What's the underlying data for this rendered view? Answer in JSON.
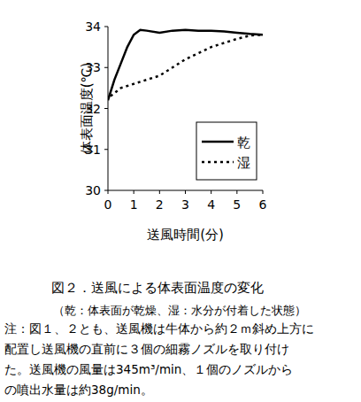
{
  "chart_data": {
    "type": "line",
    "title": "図２．送風による体表面温度の変化",
    "subtitle": "（乾：体表面が乾燥、湿：水分が付着した状態）",
    "notes": [
      "注：図１、２とも、送風機は牛体から約２ｍ斜め上方に",
      "配置し送風機の直前に３個の細霧ノズルを取り付け",
      "た。送風機の風量は345m³/min、１個のノズルから",
      "の噴出水量は約38g/min。"
    ],
    "x_label": "送風時間(分)",
    "y_label": "体表面温度(℃)",
    "xlim": [
      0,
      6
    ],
    "xticks": [
      0,
      1,
      2,
      3,
      4,
      5,
      6
    ],
    "ylim": [
      30,
      34
    ],
    "yticks": [
      30,
      31,
      32,
      33,
      34
    ],
    "grid": false,
    "legend": "right",
    "series": [
      {
        "name": "乾",
        "color": "#000000",
        "line_style": "solid",
        "x": [
          0,
          0.25,
          0.5,
          0.75,
          1.0,
          1.25,
          1.5,
          2.0,
          2.5,
          3.0,
          3.5,
          4.0,
          4.5,
          5.0,
          5.5,
          6.0
        ],
        "values": [
          32.2,
          32.7,
          33.1,
          33.5,
          33.8,
          33.92,
          33.9,
          33.85,
          33.9,
          33.92,
          33.9,
          33.9,
          33.88,
          33.85,
          33.82,
          33.8
        ]
      },
      {
        "name": "湿",
        "color": "#000000",
        "line_style": "dashed",
        "x": [
          0.1,
          0.5,
          1.0,
          1.5,
          2.0,
          2.5,
          3.0,
          3.5,
          4.0,
          4.5,
          5.0,
          5.5,
          6.0
        ],
        "values": [
          32.3,
          32.5,
          32.6,
          32.7,
          32.8,
          33.0,
          33.2,
          33.35,
          33.5,
          33.6,
          33.7,
          33.78,
          33.8
        ]
      }
    ]
  }
}
